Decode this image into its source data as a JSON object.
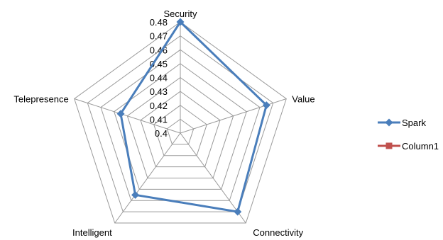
{
  "chart_data": {
    "type": "radar",
    "axes": [
      "Security",
      "Value",
      "Connectivity",
      "Intelligent",
      "Telepresence"
    ],
    "rlim": [
      0.4,
      0.48
    ],
    "ticks": [
      "0.4",
      "0.41",
      "0.42",
      "0.43",
      "0.44",
      "0.45",
      "0.46",
      "0.47",
      "0.48"
    ],
    "series": [
      {
        "name": "Spark",
        "values": [
          0.48,
          0.465,
          0.47,
          0.455,
          0.445
        ],
        "color": "#4a7ebb",
        "marker": "diamond"
      },
      {
        "name": "Column1",
        "values": [],
        "color": "#c0504d",
        "marker": "square"
      }
    ],
    "grid": true,
    "legend_position": "right"
  }
}
